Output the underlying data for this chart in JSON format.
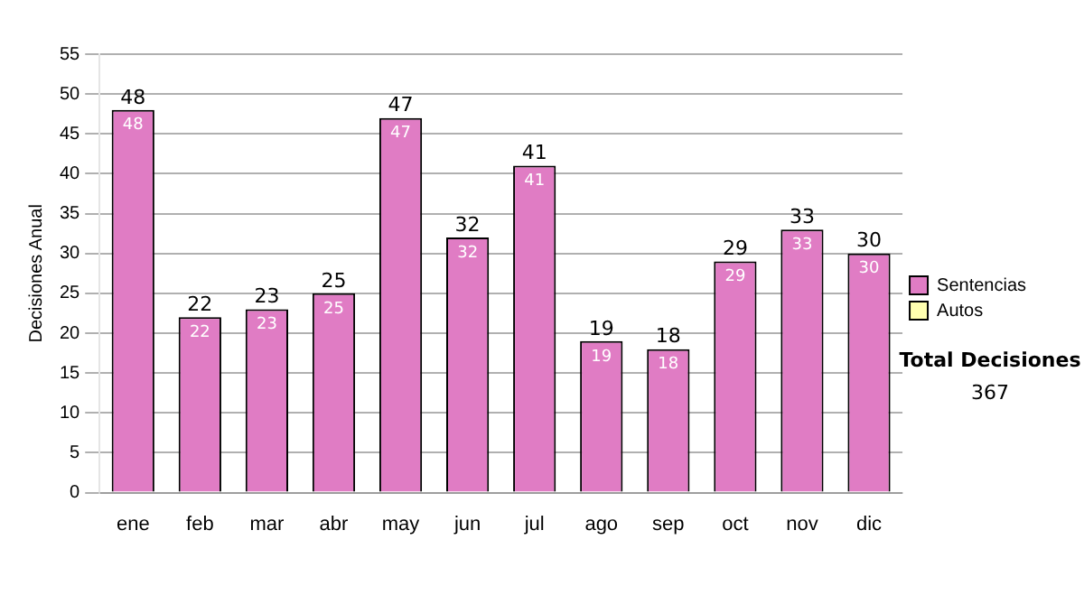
{
  "chart_data": {
    "type": "bar",
    "ylabel": "Decisiones Anual",
    "categories": [
      "ene",
      "feb",
      "mar",
      "abr",
      "may",
      "jun",
      "jul",
      "ago",
      "sep",
      "oct",
      "nov",
      "dic"
    ],
    "series": [
      {
        "name": "Sentencias",
        "color": "#e07cc4",
        "values": [
          48,
          22,
          23,
          25,
          47,
          32,
          41,
          19,
          18,
          29,
          33,
          30
        ],
        "value_labels": [
          "48",
          "22",
          "23",
          "25",
          "47",
          "32",
          "41",
          "19",
          "18",
          "29",
          "33",
          "30"
        ]
      },
      {
        "name": "Autos",
        "color": "#ffffb0",
        "values": [
          0,
          0,
          0,
          0,
          0,
          0,
          0,
          0,
          0,
          0,
          0,
          0
        ]
      }
    ],
    "stacked": true,
    "ylim": [
      0,
      55
    ],
    "yticks": [
      0,
      5,
      10,
      15,
      20,
      25,
      30,
      35,
      40,
      45,
      50,
      55
    ],
    "grid": "y",
    "legend": "right",
    "totals": [
      "48",
      "22",
      "23",
      "25",
      "47",
      "32",
      "41",
      "19",
      "18",
      "29",
      "33",
      "30"
    ],
    "annotations": [
      "Total Decisiones",
      "367"
    ]
  }
}
